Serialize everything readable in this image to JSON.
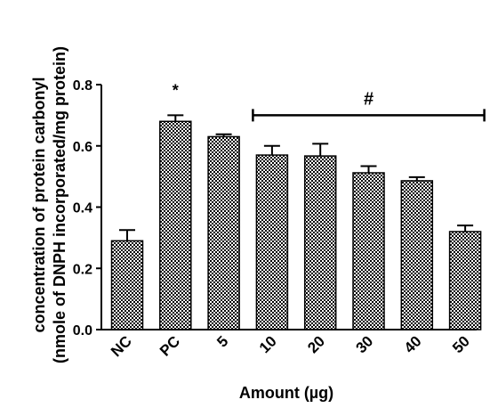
{
  "chart_data": {
    "type": "bar",
    "categories": [
      "NC",
      "PC",
      "5",
      "10",
      "20",
      "30",
      "40",
      "50"
    ],
    "values": [
      0.29,
      0.68,
      0.63,
      0.57,
      0.567,
      0.512,
      0.486,
      0.32
    ],
    "errors": [
      0.035,
      0.02,
      0.008,
      0.03,
      0.04,
      0.022,
      0.012,
      0.02
    ],
    "xlabel": "Amount (µg)",
    "ylabel_line1": "concentration of protein carbonyl",
    "ylabel_line2": "(nmole of DNPH incorporated/mg protein)",
    "ylim": [
      0,
      0.8
    ],
    "yticks": [
      0.0,
      0.2,
      0.4,
      0.6,
      0.8
    ],
    "ytick_labels": [
      "0.0",
      "0.2",
      "0.4",
      "0.6",
      "0.8"
    ],
    "grid": false,
    "annotations": [
      {
        "text": "*",
        "category": "PC"
      },
      {
        "text": "#",
        "from_category": "10",
        "to_category": "50",
        "y": 0.7
      }
    ],
    "bar_fill": "checkered",
    "colors": {
      "bar_pattern_dark": "#000000",
      "bar_pattern_light": "#ffffff"
    }
  }
}
